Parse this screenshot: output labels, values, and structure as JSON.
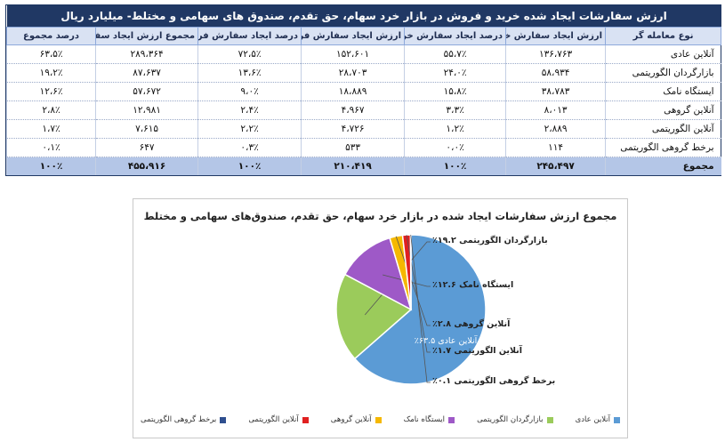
{
  "table": {
    "title": "ارزش سفارشات ایجاد شده خرید و فروش در بازار خرد سهام، حق تقدم، صندوق های سهامی و مختلط- میلیارد ریال",
    "headers": [
      "نوع معامله گر",
      "ارزش ایجاد سفارش خرید",
      "درصد ایجاد سفارش خرید",
      "ارزش ایجاد سفارش فروش",
      "درصد ایجاد سفارش فروش",
      "مجموع ارزش ایجاد سفارش",
      "درصد مجموع"
    ],
    "rows": [
      [
        "آنلاین عادی",
        "۱۳۶،۷۶۳",
        "۵۵،۷٪",
        "۱۵۲،۶۰۱",
        "۷۲،۵٪",
        "۲۸۹،۳۶۴",
        "۶۳،۵٪"
      ],
      [
        "بازارگردان الگوریتمی",
        "۵۸،۹۳۴",
        "۲۴،۰٪",
        "۲۸،۷۰۳",
        "۱۳،۶٪",
        "۸۷،۶۳۷",
        "۱۹،۲٪"
      ],
      [
        "ایستگاه نامک",
        "۳۸،۷۸۳",
        "۱۵،۸٪",
        "۱۸،۸۸۹",
        "۹،۰٪",
        "۵۷،۶۷۲",
        "۱۲،۶٪"
      ],
      [
        "آنلاین گروهی",
        "۸،۰۱۳",
        "۳،۳٪",
        "۴،۹۶۷",
        "۲،۴٪",
        "۱۲،۹۸۱",
        "۲،۸٪"
      ],
      [
        "آنلاین الگوریتمی",
        "۲،۸۸۹",
        "۱،۲٪",
        "۴،۷۲۶",
        "۲،۲٪",
        "۷،۶۱۵",
        "۱،۷٪"
      ],
      [
        "برخط گروهی الگوریتمی",
        "۱۱۴",
        "۰،۰٪",
        "۵۳۳",
        "۰،۳٪",
        "۶۴۷",
        "۰،۱٪"
      ]
    ],
    "total": [
      "مجموع",
      "۲۴۵،۴۹۷",
      "۱۰۰٪",
      "۲۱۰،۴۱۹",
      "۱۰۰٪",
      "۴۵۵،۹۱۶",
      "۱۰۰٪"
    ]
  },
  "chart_data": {
    "type": "pie",
    "title": "مجموع ارزش سفارشات ایجاد شده در بازار خرد سهام، حق تقدم، صندوق‌های سهامی و مختلط",
    "slices": [
      {
        "name": "آنلاین عادی",
        "value": 63.5,
        "label": "آنلاین عادی ۶۳.۵٪",
        "color": "#5b9bd5"
      },
      {
        "name": "بازارگردان الگوریتمی",
        "value": 19.2,
        "label": "بازارگردان الگوریتمی ۱۹.۲٪",
        "color": "#9bcb5b"
      },
      {
        "name": "ایستگاه نامک",
        "value": 12.6,
        "label": "ایستگاه نامک ۱۲.۶٪",
        "color": "#9e59c7"
      },
      {
        "name": "آنلاین گروهی",
        "value": 2.8,
        "label": "آنلاین گروهی ۲.۸٪",
        "color": "#f5b800"
      },
      {
        "name": "آنلاین الگوریتمی",
        "value": 1.7,
        "label": "آنلاین الگوریتمی ۱.۷٪",
        "color": "#e02020"
      },
      {
        "name": "برخط گروهی الگوریتمی",
        "value": 0.1,
        "label": "برخط گروهی الگوریتمی ۰.۱٪",
        "color": "#2f4f8f"
      }
    ],
    "legend_position": "bottom"
  }
}
